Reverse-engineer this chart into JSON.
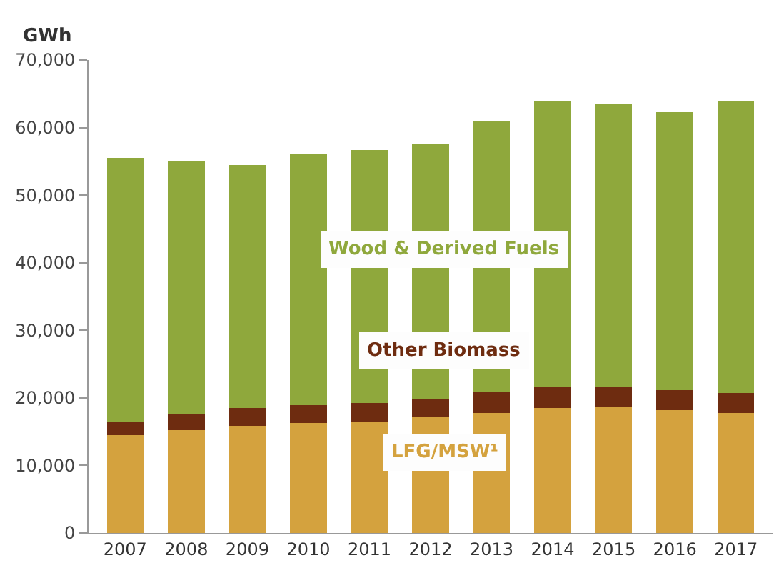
{
  "chart_data": {
    "type": "bar",
    "stacked": true,
    "ylabel": "GWh",
    "categories": [
      "2007",
      "2008",
      "2009",
      "2010",
      "2011",
      "2012",
      "2013",
      "2014",
      "2015",
      "2016",
      "2017"
    ],
    "series": [
      {
        "name": "LFG/MSW¹",
        "color": "#d4a23e",
        "values": [
          14500,
          15200,
          15900,
          16300,
          16400,
          17200,
          17800,
          18500,
          18600,
          18200,
          17800
        ]
      },
      {
        "name": "Other Biomass",
        "color": "#6e2c10",
        "values": [
          2000,
          2500,
          2600,
          2600,
          2800,
          2600,
          3100,
          3100,
          3100,
          3000,
          2900
        ]
      },
      {
        "name": "Wood & Derived Fuels",
        "color": "#8fa83c",
        "values": [
          39000,
          37300,
          36000,
          37100,
          37500,
          37800,
          40000,
          42400,
          41900,
          41100,
          43300
        ]
      }
    ],
    "ylim": [
      0,
      70000
    ],
    "yticks": [
      {
        "value": 0,
        "label": "0"
      },
      {
        "value": 10000,
        "label": "10,000"
      },
      {
        "value": 20000,
        "label": "20,000"
      },
      {
        "value": 30000,
        "label": "30,000"
      },
      {
        "value": 40000,
        "label": "40,000"
      },
      {
        "value": 50000,
        "label": "50,000"
      },
      {
        "value": 60000,
        "label": "60,000"
      },
      {
        "value": 70000,
        "label": "70,000"
      }
    ],
    "legend": false
  }
}
